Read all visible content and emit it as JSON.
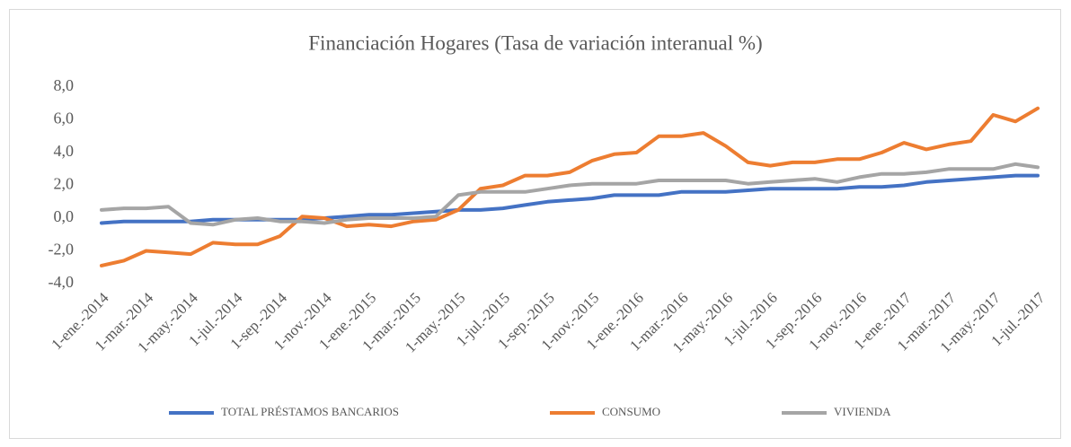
{
  "chart_data": {
    "type": "line",
    "title": "Financiación Hogares (Tasa de variación interanual %)",
    "categories": [
      "1-ene.-2014",
      null,
      "1-mar.-2014",
      null,
      "1-may.-2014",
      null,
      "1-jul.-2014",
      null,
      "1-sep.-2014",
      null,
      "1-nov.-2014",
      null,
      "1-ene.-2015",
      null,
      "1-mar.-2015",
      null,
      "1-may.-2015",
      null,
      "1-jul.-2015",
      null,
      "1-sep.-2015",
      null,
      "1-nov.-2015",
      null,
      "1-ene.-2016",
      null,
      "1-mar.-2016",
      null,
      "1-may.-2016",
      null,
      "1-jul.-2016",
      null,
      "1-sep.-2016",
      null,
      "1-nov.-2016",
      null,
      "1-ene.-2017",
      null,
      "1-mar.-2017",
      null,
      "1-may.-2017",
      null,
      "1-jul.-2017"
    ],
    "series": [
      {
        "name": "TOTAL PRÉSTAMOS BANCARIOS",
        "color": "#4472c4",
        "values": [
          -0.3,
          -0.2,
          -0.2,
          -0.2,
          -0.2,
          -0.1,
          -0.1,
          -0.1,
          -0.1,
          -0.1,
          0.0,
          0.1,
          0.2,
          0.2,
          0.3,
          0.4,
          0.5,
          0.5,
          0.6,
          0.8,
          1.0,
          1.1,
          1.2,
          1.4,
          1.4,
          1.4,
          1.6,
          1.6,
          1.6,
          1.7,
          1.8,
          1.8,
          1.8,
          1.8,
          1.9,
          1.9,
          2.0,
          2.2,
          2.3,
          2.4,
          2.5,
          2.6,
          2.6
        ]
      },
      {
        "name": "CONSUMO",
        "color": "#ed7d31",
        "values": [
          -2.9,
          -2.6,
          -2.0,
          -2.1,
          -2.2,
          -1.5,
          -1.6,
          -1.6,
          -1.1,
          0.1,
          0.0,
          -0.5,
          -0.4,
          -0.5,
          -0.2,
          -0.1,
          0.5,
          1.8,
          2.0,
          2.6,
          2.6,
          2.8,
          3.5,
          3.9,
          4.0,
          5.0,
          5.0,
          5.2,
          4.4,
          3.4,
          3.2,
          3.4,
          3.4,
          3.6,
          3.6,
          4.0,
          4.6,
          4.2,
          4.5,
          4.7,
          6.3,
          5.9,
          6.7
        ]
      },
      {
        "name": "VIVIENDA",
        "color": "#a5a5a5",
        "values": [
          0.5,
          0.6,
          0.6,
          0.7,
          -0.3,
          -0.4,
          -0.1,
          0.0,
          -0.2,
          -0.2,
          -0.3,
          -0.1,
          0.0,
          0.0,
          0.0,
          0.1,
          1.4,
          1.6,
          1.6,
          1.6,
          1.8,
          2.0,
          2.1,
          2.1,
          2.1,
          2.3,
          2.3,
          2.3,
          2.3,
          2.1,
          2.2,
          2.3,
          2.4,
          2.2,
          2.5,
          2.7,
          2.7,
          2.8,
          3.0,
          3.0,
          3.0,
          3.3,
          3.1
        ]
      }
    ],
    "ylim": [
      -4,
      8
    ],
    "yticks": [
      {
        "value": -4,
        "label": "-4,0"
      },
      {
        "value": -2,
        "label": "-2,0"
      },
      {
        "value": 0,
        "label": "0,0"
      },
      {
        "value": 2,
        "label": "2,0"
      },
      {
        "value": 4,
        "label": "4,0"
      },
      {
        "value": 6,
        "label": "6,0"
      },
      {
        "value": 8,
        "label": "8,0"
      }
    ],
    "grid": false,
    "legend": "bottom"
  }
}
